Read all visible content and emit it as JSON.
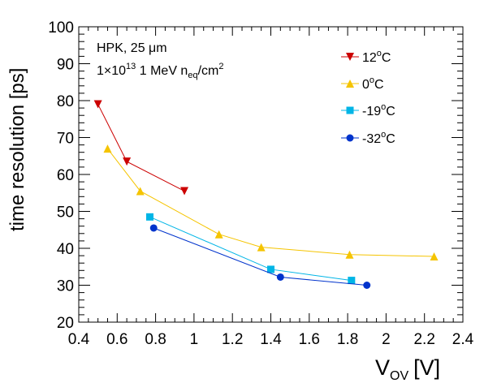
{
  "chart_data": {
    "type": "line",
    "xlabel_main": "V",
    "xlabel_sub": "OV",
    "xlabel_unit": "[V]",
    "ylabel": "time resolution [ps]",
    "xlim": [
      0.4,
      2.4
    ],
    "ylim": [
      20,
      100
    ],
    "x_ticks": [
      "0.4",
      "0.6",
      "0.8",
      "1",
      "1.2",
      "1.4",
      "1.6",
      "1.8",
      "2",
      "2.2",
      "2.4"
    ],
    "y_ticks": [
      "20",
      "30",
      "40",
      "50",
      "60",
      "70",
      "80",
      "90",
      "100"
    ],
    "annotations": {
      "line1": "HPK, 25 μm",
      "line2_prefix": "1×10",
      "line2_exp": "13",
      "line2_mid": " 1 MeV n",
      "line2_sub": "eq",
      "line2_unit": "/cm",
      "line2_exp2": "2"
    },
    "series": [
      {
        "name": "12°C",
        "label_main": "12",
        "label_sup": "o",
        "label_end": "C",
        "color": "#cc0000",
        "marker": "triangle-down",
        "x": [
          0.5,
          0.65,
          0.95
        ],
        "y": [
          79,
          63.5,
          55.5
        ]
      },
      {
        "name": "0°C",
        "label_main": "0",
        "label_sup": "o",
        "label_end": "C",
        "color": "#f5c400",
        "marker": "triangle-up",
        "x": [
          0.55,
          0.72,
          1.13,
          1.35,
          1.81,
          2.25
        ],
        "y": [
          67,
          55.5,
          43.8,
          40.3,
          38.3,
          37.8
        ]
      },
      {
        "name": "-19°C",
        "label_main": "-19",
        "label_sup": "o",
        "label_end": "C",
        "color": "#00b5e6",
        "marker": "square",
        "x": [
          0.77,
          1.4,
          1.82
        ],
        "y": [
          48.5,
          34.3,
          31.3
        ]
      },
      {
        "name": "-32°C",
        "label_main": "-32",
        "label_sup": "o",
        "label_end": "C",
        "color": "#0033cc",
        "marker": "circle",
        "x": [
          0.79,
          1.45,
          1.9
        ],
        "y": [
          45.5,
          32.2,
          30
        ]
      }
    ]
  }
}
